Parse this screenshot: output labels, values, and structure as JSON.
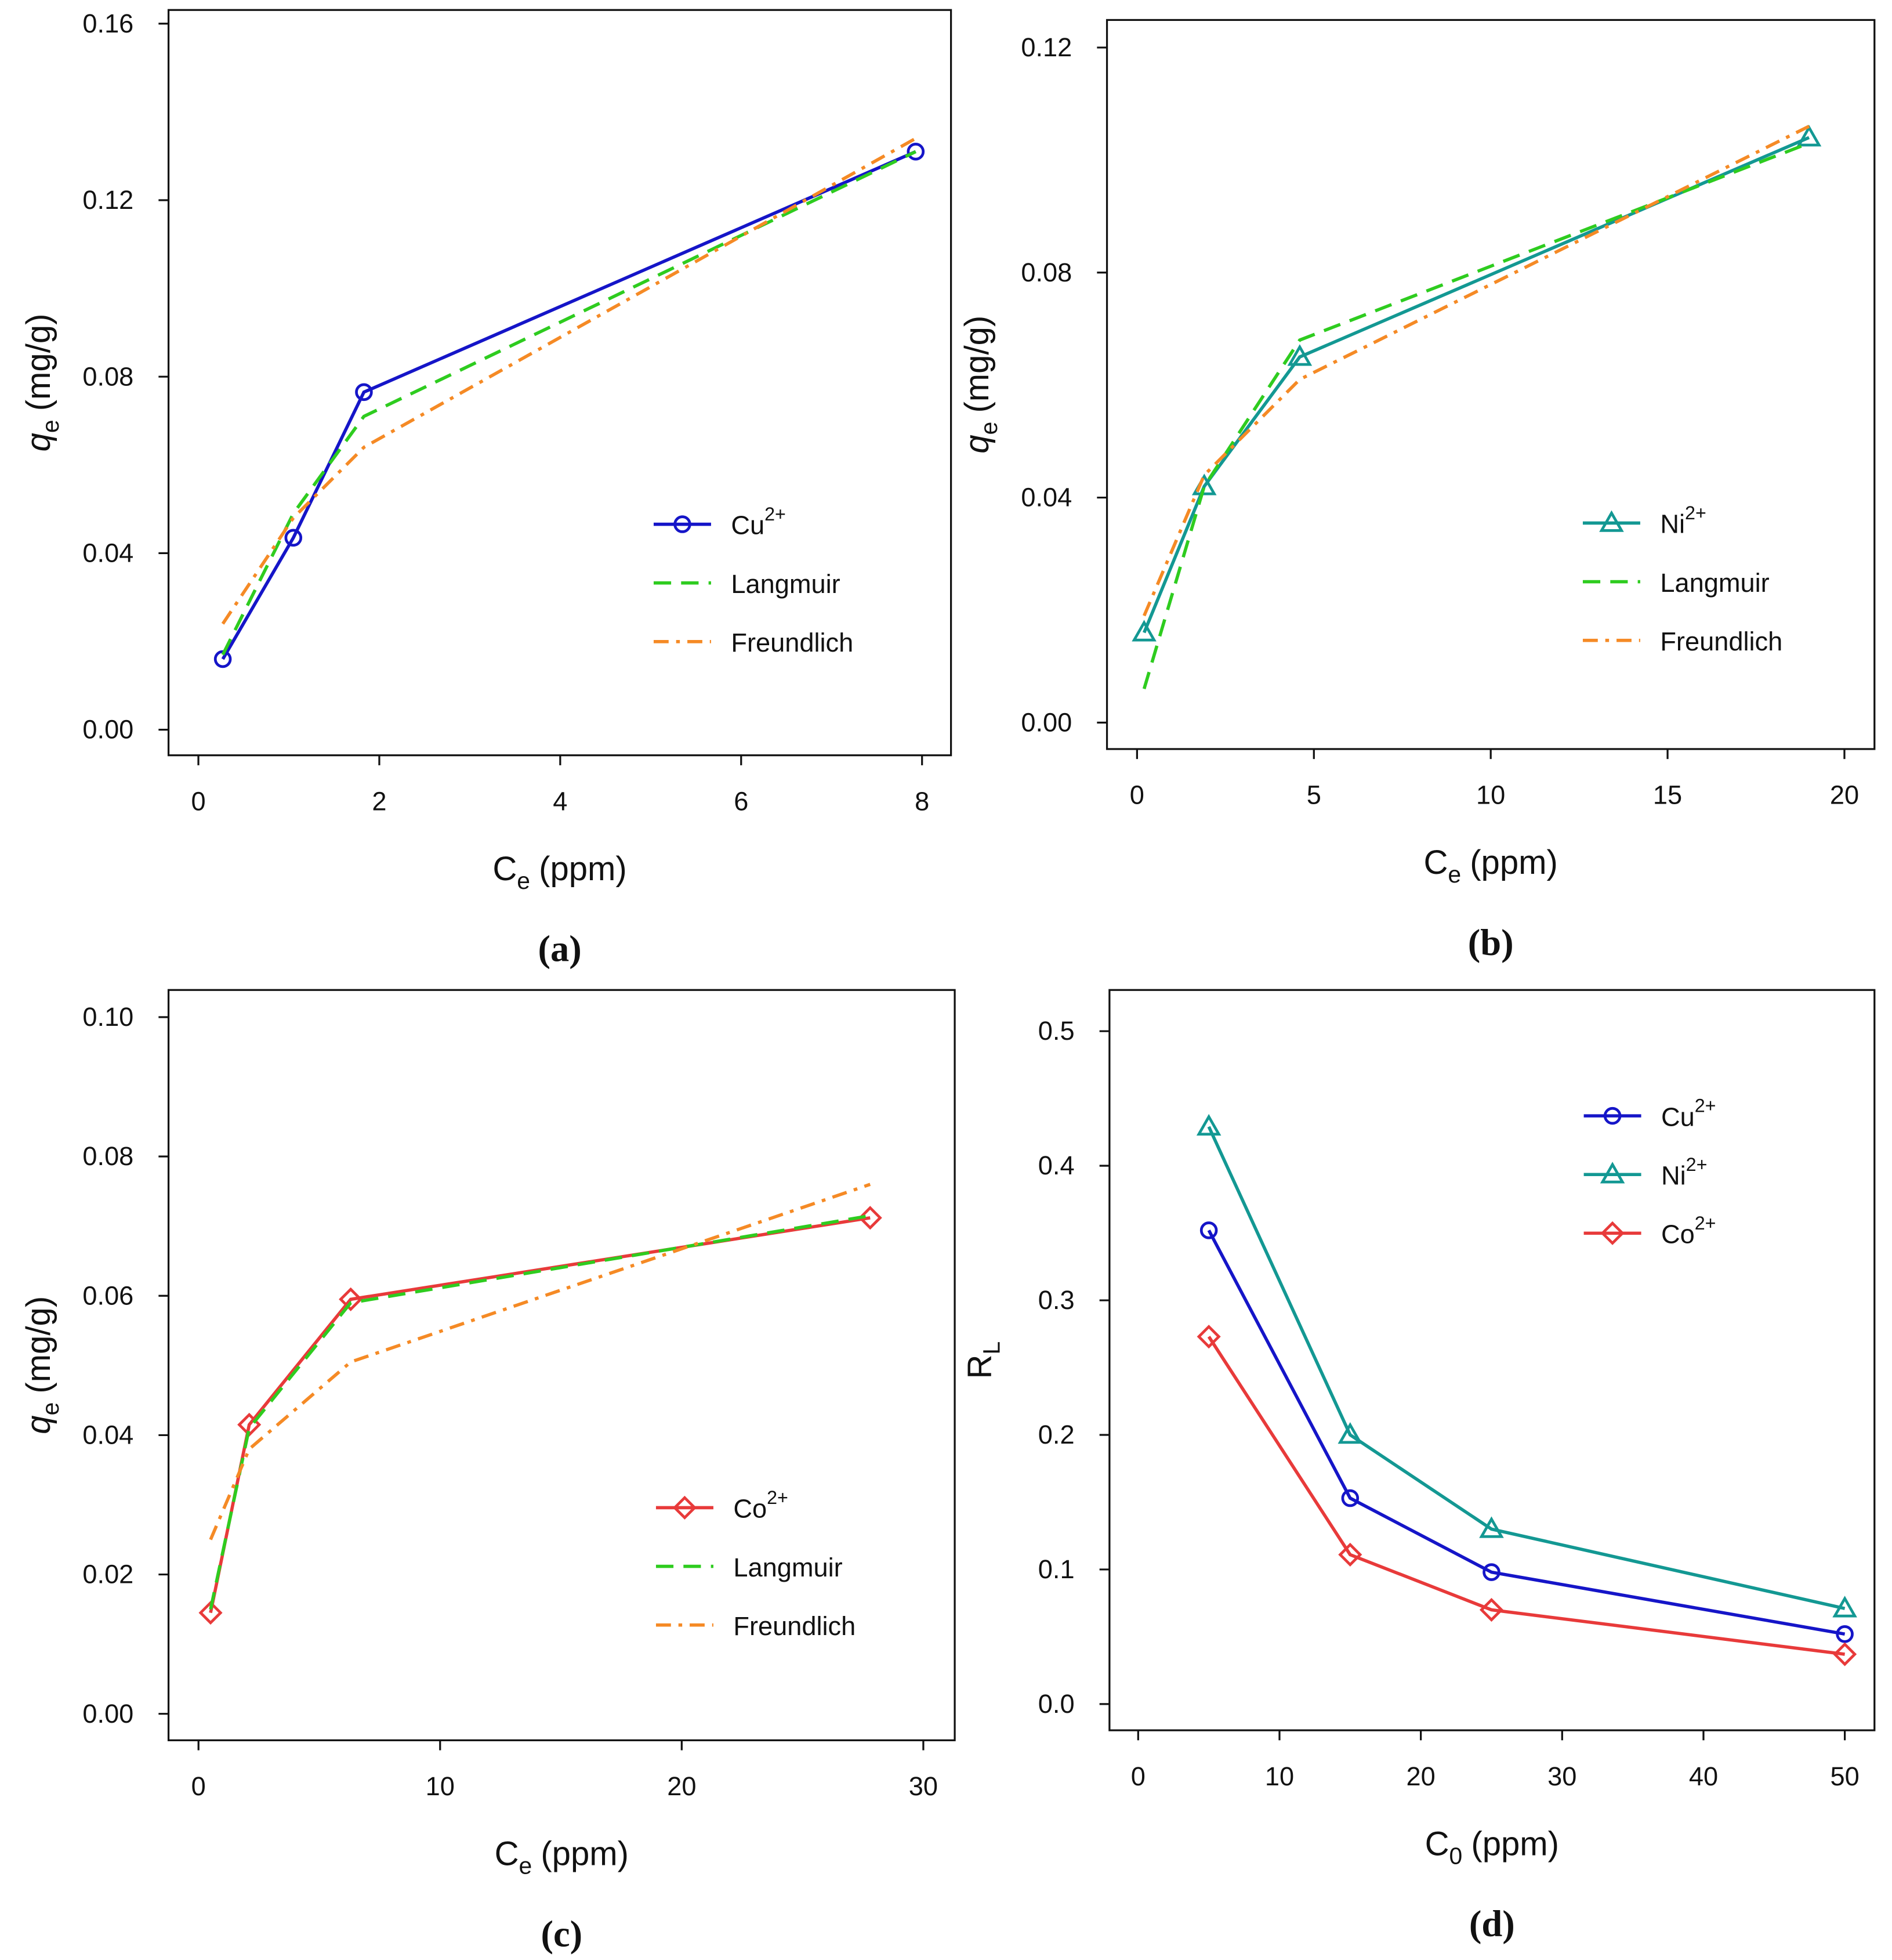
{
  "chart_data": [
    {
      "type": "line",
      "panel": "(a)",
      "x_label": {
        "symbol": "C",
        "subscript": "e",
        "unit": "(ppm)"
      },
      "y_label": {
        "symbol": "q",
        "subscript": "e",
        "unit": "(mg/g)",
        "italic": true
      },
      "xlim": [
        -0.33,
        8.32
      ],
      "ylim": [
        -0.0058,
        0.1631
      ],
      "xticks": [
        0,
        2,
        4,
        6,
        8
      ],
      "yticks": [
        "0.00",
        "0.04",
        "0.08",
        "0.12",
        "0.16"
      ],
      "legend_position": "lower right",
      "series": [
        {
          "name": "Cu",
          "sup": "2+",
          "color": "#1515c8",
          "marker": "circle",
          "dash": "solid",
          "x": [
            0.27,
            1.05,
            1.83,
            7.93
          ],
          "values": [
            0.016,
            0.0435,
            0.0765,
            0.131
          ]
        },
        {
          "name": "Langmuir",
          "color": "#2ecc1f",
          "dash": "dashed",
          "x": [
            0.27,
            1.05,
            1.83,
            7.93
          ],
          "values": [
            0.017,
            0.049,
            0.071,
            0.131
          ]
        },
        {
          "name": "Freundlich",
          "color": "#f58a25",
          "dash": "dashdot",
          "x": [
            0.27,
            1.05,
            1.83,
            7.93
          ],
          "values": [
            0.024,
            0.048,
            0.064,
            0.134
          ]
        }
      ]
    },
    {
      "type": "line",
      "panel": "(b)",
      "x_label": {
        "symbol": "C",
        "subscript": "e",
        "unit": "(ppm)"
      },
      "y_label": {
        "symbol": "q",
        "subscript": "e",
        "unit": "(mg/g)",
        "italic": true
      },
      "xlim": [
        -0.85,
        20.85
      ],
      "ylim": [
        -0.0047,
        0.1249
      ],
      "xticks": [
        0,
        5,
        10,
        15,
        20
      ],
      "yticks": [
        "0.00",
        "0.04",
        "0.08",
        "0.12"
      ],
      "legend_position": "lower right",
      "series": [
        {
          "name": "Ni",
          "sup": "2+",
          "color": "#139893",
          "marker": "triangle",
          "dash": "solid",
          "x": [
            0.2,
            1.9,
            4.6,
            19.0
          ],
          "values": [
            0.016,
            0.042,
            0.065,
            0.104
          ]
        },
        {
          "name": "Langmuir",
          "color": "#2ecc1f",
          "dash": "dashed",
          "x": [
            0.2,
            1.9,
            4.6,
            19.0
          ],
          "values": [
            0.006,
            0.042,
            0.068,
            0.103
          ]
        },
        {
          "name": "Freundlich",
          "color": "#f58a25",
          "dash": "dashdot",
          "x": [
            0.2,
            1.9,
            4.6,
            19.0
          ],
          "values": [
            0.019,
            0.044,
            0.061,
            0.106
          ]
        }
      ]
    },
    {
      "type": "line",
      "panel": "(c)",
      "x_label": {
        "symbol": "C",
        "subscript": "e",
        "unit": "(ppm)"
      },
      "y_label": {
        "symbol": "q",
        "subscript": "e",
        "unit": "(mg/g)",
        "italic": true
      },
      "xlim": [
        -1.24,
        31.3
      ],
      "ylim": [
        -0.0038,
        0.1039
      ],
      "xticks": [
        0,
        10,
        20,
        30
      ],
      "yticks": [
        "0.00",
        "0.02",
        "0.04",
        "0.06",
        "0.08",
        "0.10"
      ],
      "legend_position": "lower right",
      "series": [
        {
          "name": "Co",
          "sup": "2+",
          "color": "#e83a3a",
          "marker": "diamond",
          "dash": "solid",
          "x": [
            0.5,
            2.1,
            6.3,
            27.8
          ],
          "values": [
            0.0145,
            0.0415,
            0.0595,
            0.0712
          ]
        },
        {
          "name": "Langmuir",
          "color": "#2ecc1f",
          "dash": "dashed",
          "x": [
            0.5,
            2.1,
            6.3,
            27.8
          ],
          "values": [
            0.015,
            0.041,
            0.059,
            0.0715
          ]
        },
        {
          "name": "Freundlich",
          "color": "#f58a25",
          "dash": "dashdot",
          "x": [
            0.5,
            2.1,
            6.3,
            27.8
          ],
          "values": [
            0.025,
            0.038,
            0.0505,
            0.076
          ]
        }
      ]
    },
    {
      "type": "line",
      "panel": "(d)",
      "x_label": {
        "symbol": "C",
        "subscript": "0",
        "unit": "(ppm)"
      },
      "y_label": {
        "symbol": "R",
        "subscript": "L"
      },
      "xlim": [
        -2.03,
        52.1
      ],
      "ylim": [
        -0.0195,
        0.5306
      ],
      "xticks": [
        0,
        10,
        20,
        30,
        40,
        50
      ],
      "yticks": [
        "0.0",
        "0.1",
        "0.2",
        "0.3",
        "0.4",
        "0.5"
      ],
      "legend_position": "upper right",
      "series": [
        {
          "name": "Cu",
          "sup": "2+",
          "color": "#1515c8",
          "marker": "circle",
          "dash": "solid",
          "x": [
            5,
            15,
            25,
            50
          ],
          "values": [
            0.352,
            0.153,
            0.098,
            0.052
          ]
        },
        {
          "name": "Ni",
          "sup": "2+",
          "color": "#139893",
          "marker": "triangle",
          "dash": "solid",
          "x": [
            5,
            15,
            25,
            50
          ],
          "values": [
            0.429,
            0.2,
            0.13,
            0.071
          ]
        },
        {
          "name": "Co",
          "sup": "2+",
          "color": "#e83a3a",
          "marker": "diamond",
          "dash": "solid",
          "x": [
            5,
            15,
            25,
            50
          ],
          "values": [
            0.273,
            0.111,
            0.07,
            0.037
          ]
        }
      ]
    }
  ]
}
